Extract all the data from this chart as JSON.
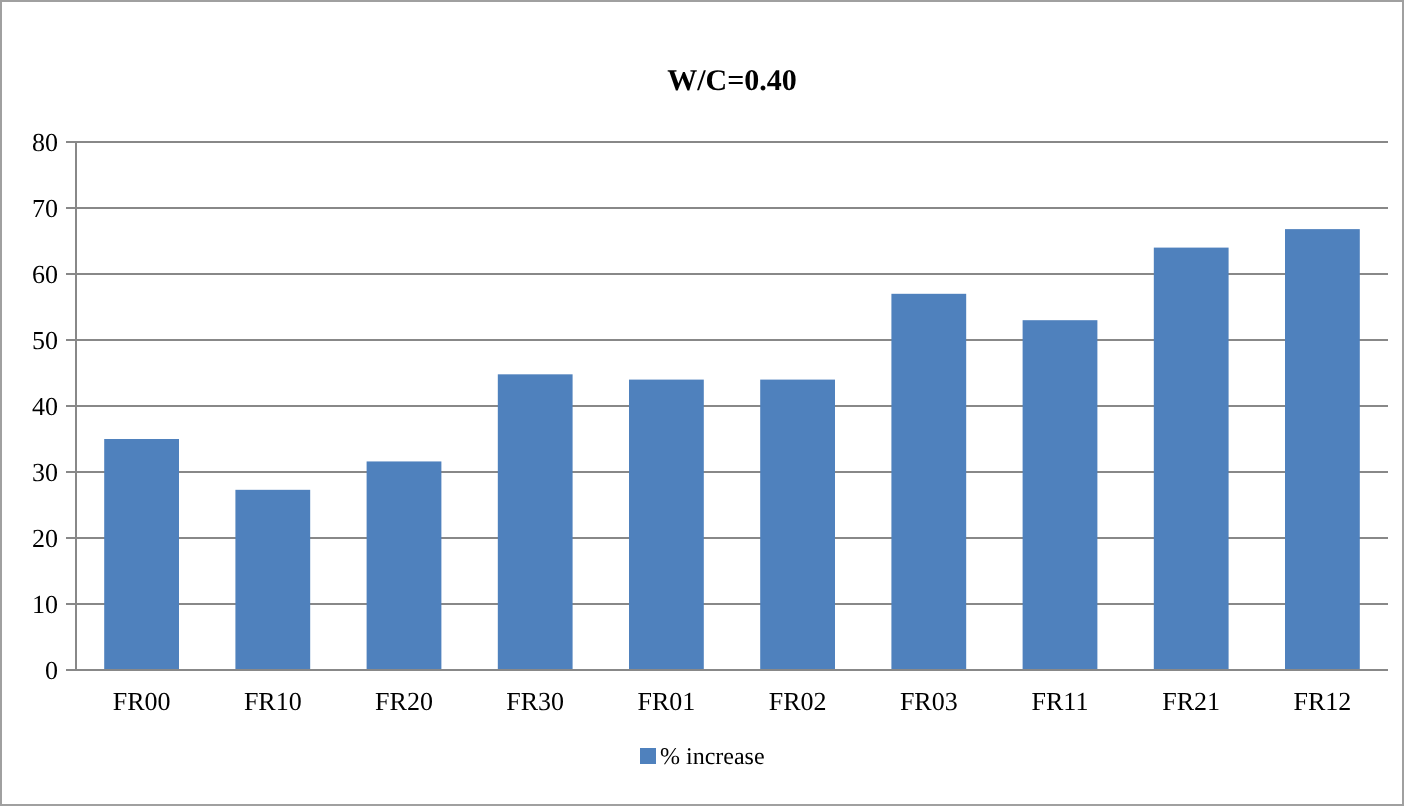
{
  "chart_data": {
    "type": "bar",
    "title": "W/C=0.40",
    "categories": [
      "FR00",
      "FR10",
      "FR20",
      "FR30",
      "FR01",
      "FR02",
      "FR03",
      "FR11",
      "FR21",
      "FR12"
    ],
    "series": [
      {
        "name": "% increase",
        "color": "#4f81bd",
        "values": [
          35,
          27.3,
          31.6,
          44.8,
          44,
          44,
          57,
          53,
          64,
          66.8
        ]
      }
    ],
    "ylim": [
      0,
      80
    ],
    "yticks": [
      0,
      10,
      20,
      30,
      40,
      50,
      60,
      70,
      80
    ],
    "grid": "y",
    "legend": "bottom"
  }
}
